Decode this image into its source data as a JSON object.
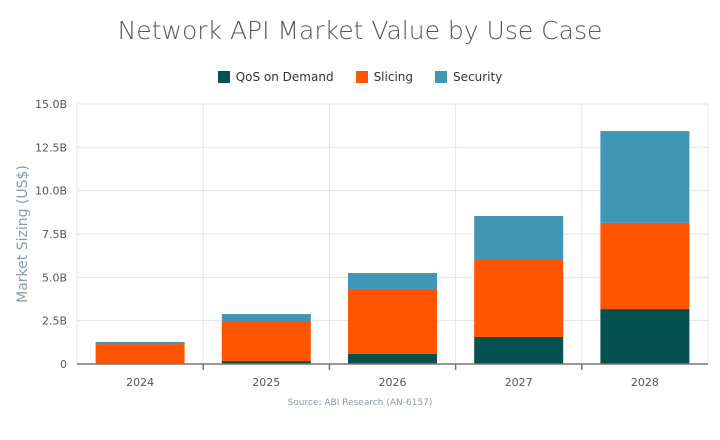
{
  "chart_data": {
    "type": "bar",
    "stacked": true,
    "title": "Network API Market Value by Use Case",
    "xlabel": "",
    "ylabel": "Market Sizing (US$)",
    "ylim": [
      0,
      15
    ],
    "y_ticks": [
      "0",
      "2.5B",
      "5.0B",
      "7.5B",
      "10.0B",
      "12.5B",
      "15.0B"
    ],
    "grid": true,
    "legend_position": "top",
    "categories": [
      "2024",
      "2025",
      "2026",
      "2027",
      "2028"
    ],
    "series": [
      {
        "name": "QoS on Demand",
        "color": "#045150",
        "values": [
          0.02,
          0.17,
          0.58,
          1.56,
          3.17
        ]
      },
      {
        "name": "Slicing",
        "color": "#ff5500",
        "values": [
          1.13,
          2.31,
          3.75,
          4.5,
          4.97
        ]
      },
      {
        "name": "Security",
        "color": "#3f96b5",
        "values": [
          0.12,
          0.4,
          0.92,
          2.48,
          5.3
        ]
      }
    ],
    "source": "Source: ABI Research (AN-6157)"
  }
}
